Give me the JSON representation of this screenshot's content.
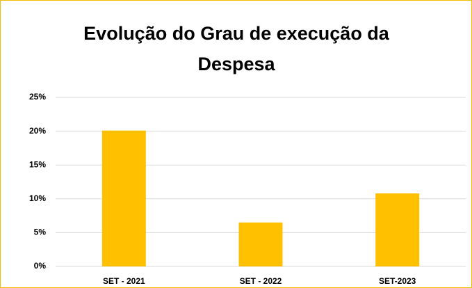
{
  "chart_data": {
    "type": "bar",
    "title": "Evolução do Grau de execução da Despesa",
    "categories": [
      "SET - 2021",
      "SET - 2022",
      "SET-2023"
    ],
    "values": [
      20.1,
      6.5,
      10.8
    ],
    "color": "#ffc000",
    "ylim": [
      0,
      25
    ],
    "yticks": [
      {
        "value": 0,
        "label": "0%"
      },
      {
        "value": 5,
        "label": "5%"
      },
      {
        "value": 10,
        "label": "10%"
      },
      {
        "value": 15,
        "label": "15%"
      },
      {
        "value": 20,
        "label": "20%"
      },
      {
        "value": 25,
        "label": "25%"
      }
    ],
    "grid": true
  }
}
